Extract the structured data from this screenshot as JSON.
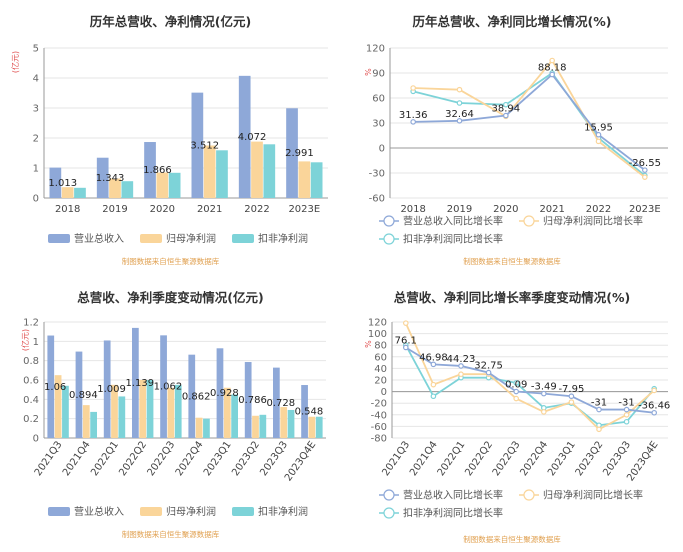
{
  "colors": {
    "revenue": "#8EA8D8",
    "net_profit": "#FAD59A",
    "deducted_profit": "#7DD3D8",
    "source_text": "#E0A050",
    "unit_text": "#E05050",
    "axis": "#666666",
    "grid": "#E6E6E6",
    "title": "#333333"
  },
  "legend_labels": {
    "revenue": "营业总收入",
    "net_profit": "归母净利润",
    "deducted_profit": "扣非净利润",
    "revenue_growth": "营业总收入同比增长率",
    "net_profit_growth": "归母净利润同比增长率",
    "deducted_profit_growth": "扣非净利润同比增长率"
  },
  "source_note": "制图数据来自恒生聚源数据库",
  "chart_data": [
    {
      "id": "annual_amount",
      "type": "bar",
      "title": "历年总营收、净利情况(亿元)",
      "ylabel": "(亿元)",
      "ylim": [
        0,
        5
      ],
      "yticks": [
        0,
        1,
        2,
        3,
        4,
        5
      ],
      "categories": [
        "2018",
        "2019",
        "2020",
        "2021",
        "2022",
        "2023E"
      ],
      "series": [
        {
          "key": "revenue",
          "name": "营业总收入",
          "values": [
            1.013,
            1.343,
            1.866,
            3.512,
            4.072,
            2.991
          ]
        },
        {
          "key": "net_profit",
          "name": "归母净利润",
          "values": [
            0.36,
            0.65,
            0.85,
            1.75,
            1.88,
            1.22
          ]
        },
        {
          "key": "deducted_profit",
          "name": "扣非净利润",
          "values": [
            0.34,
            0.56,
            0.84,
            1.59,
            1.79,
            1.19
          ]
        }
      ],
      "data_labels": [
        "1.013",
        "1.343",
        "1.866",
        "3.512",
        "4.072",
        "2.991"
      ]
    },
    {
      "id": "annual_growth",
      "type": "line",
      "title": "历年总营收、净利同比增长情况(%)",
      "ylabel": "%",
      "ylim": [
        -60,
        120
      ],
      "yticks": [
        -60,
        -30,
        0,
        30,
        60,
        90,
        120
      ],
      "categories": [
        "2018",
        "2019",
        "2020",
        "2021",
        "2022",
        "2023E"
      ],
      "series": [
        {
          "key": "revenue",
          "name": "营业总收入同比增长率",
          "values": [
            31.36,
            32.64,
            38.94,
            88.18,
            15.95,
            -26.55
          ]
        },
        {
          "key": "net_profit",
          "name": "归母净利润同比增长率",
          "values": [
            72,
            70,
            38,
            105,
            8,
            -35
          ]
        },
        {
          "key": "deducted_profit",
          "name": "扣非净利润同比增长率",
          "values": [
            68,
            54,
            52,
            90,
            12,
            -33
          ]
        }
      ],
      "data_labels": [
        "31.36",
        "32.64",
        "38.94",
        "88.18",
        "15.95",
        "-26.55"
      ]
    },
    {
      "id": "quarterly_amount",
      "type": "bar",
      "title": "总营收、净利季度变动情况(亿元)",
      "ylabel": "(亿元)",
      "ylim": [
        0,
        1.2
      ],
      "yticks": [
        0,
        0.2,
        0.4,
        0.6,
        0.8,
        1,
        1.2
      ],
      "categories": [
        "2021Q3",
        "2021Q4",
        "2022Q1",
        "2022Q2",
        "2022Q3",
        "2022Q4",
        "2023Q1",
        "2023Q2",
        "2023Q3",
        "2023Q4E"
      ],
      "series": [
        {
          "key": "revenue",
          "name": "营业总收入",
          "values": [
            1.06,
            0.894,
            1.009,
            1.139,
            1.062,
            0.862,
            0.928,
            0.786,
            0.728,
            0.548
          ]
        },
        {
          "key": "net_profit",
          "name": "归母净利润",
          "values": [
            0.65,
            0.34,
            0.55,
            0.6,
            0.52,
            0.21,
            0.52,
            0.23,
            0.32,
            0.22
          ]
        },
        {
          "key": "deducted_profit",
          "name": "扣非净利润",
          "values": [
            0.54,
            0.27,
            0.43,
            0.6,
            0.55,
            0.2,
            0.45,
            0.24,
            0.29,
            0.22
          ]
        }
      ],
      "data_labels": [
        "1.06",
        "0.894",
        "1.009",
        "1.139",
        "1.062",
        "0.862",
        "0.928",
        "0.786",
        "0.728",
        "0.548"
      ]
    },
    {
      "id": "quarterly_growth",
      "type": "line",
      "title": "总营收、净利同比增长率季度变动情况(%)",
      "ylabel": "%",
      "ylim": [
        -80,
        120
      ],
      "yticks": [
        -80,
        -60,
        -40,
        -20,
        0,
        20,
        40,
        60,
        80,
        100,
        120
      ],
      "categories": [
        "2021Q3",
        "2021Q4",
        "2022Q1",
        "2022Q2",
        "2022Q3",
        "2022Q4",
        "2023Q1",
        "2023Q2",
        "2023Q3",
        "2023Q4E"
      ],
      "series": [
        {
          "key": "revenue",
          "name": "营业总收入同比增长率",
          "values": [
            76.1,
            46.98,
            44.23,
            32.75,
            0.09,
            -3.49,
            -7.95,
            -31,
            -31,
            -36.46
          ]
        },
        {
          "key": "net_profit",
          "name": "归母净利润同比增长率",
          "values": [
            118,
            12,
            30,
            30,
            -12,
            -35,
            -18,
            -65,
            -40,
            2
          ]
        },
        {
          "key": "deducted_profit",
          "name": "扣非净利润同比增长率",
          "values": [
            80,
            -8,
            24,
            24,
            15,
            -28,
            -20,
            -58,
            -52,
            5
          ]
        }
      ],
      "data_labels": [
        "76.1",
        "46.98",
        "44.23",
        "32.75",
        "0.09",
        "-3.49",
        "-7.95",
        "-31",
        "-31",
        "-36.46"
      ]
    }
  ]
}
